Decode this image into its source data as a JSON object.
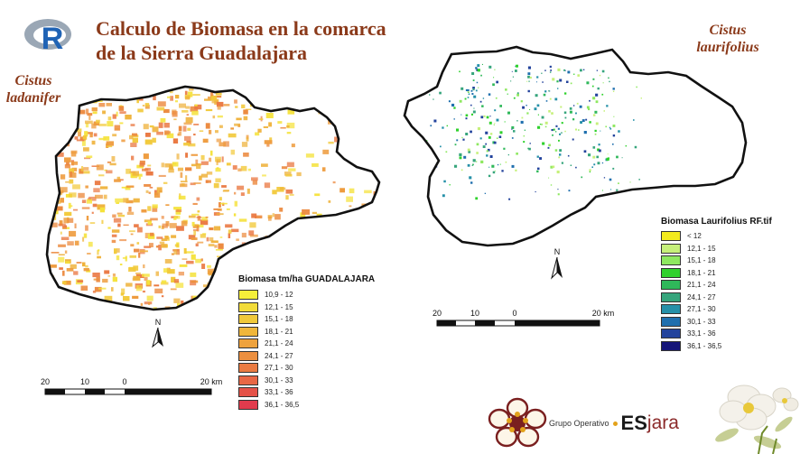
{
  "title": {
    "line1": "Calculo de Biomasa en la comarca",
    "line2": "de la Sierra Guadalajara"
  },
  "r_logo": {
    "letter": "R",
    "icon": "r-logo-icon",
    "ring_color": "#8a9aab",
    "letter_color": "#1f63b5"
  },
  "left_map": {
    "species_line1": "Cistus",
    "species_line2": "ladanifer",
    "legend_title": "Biomasa tm/ha GUADALAJARA",
    "legend": [
      {
        "label": "10,9 - 12",
        "color": "#f5ef3a"
      },
      {
        "label": "12,1 - 15",
        "color": "#f2dc3a"
      },
      {
        "label": "15,1 - 18",
        "color": "#f0c93a"
      },
      {
        "label": "18,1 - 21",
        "color": "#efb63b"
      },
      {
        "label": "21,1 - 24",
        "color": "#eea23d"
      },
      {
        "label": "24,1 - 27",
        "color": "#ec8f3f"
      },
      {
        "label": "27,1 - 30",
        "color": "#ea7b42"
      },
      {
        "label": "30,1 - 33",
        "color": "#e86745"
      },
      {
        "label": "33,1 - 36",
        "color": "#e55248"
      },
      {
        "label": "36,1 - 36,5",
        "color": "#e13b4d"
      }
    ],
    "north_label": "N",
    "scale_labels": [
      "20",
      "10",
      "0",
      "20 km"
    ]
  },
  "right_map": {
    "species_line1": "Cistus",
    "species_line2": "laurifolius",
    "legend_title": "Biomasa Laurifolius RF.tif",
    "legend": [
      {
        "label": "< 12",
        "color": "#f2ea1e"
      },
      {
        "label": "12,1 - 15",
        "color": "#c6f07a"
      },
      {
        "label": "15,1 - 18",
        "color": "#8ee860"
      },
      {
        "label": "18,1 - 21",
        "color": "#2fd12c"
      },
      {
        "label": "21,1 - 24",
        "color": "#2fb85a"
      },
      {
        "label": "24,1 - 27",
        "color": "#36a57c"
      },
      {
        "label": "27,1 - 30",
        "color": "#2590a8"
      },
      {
        "label": "30,1 - 33",
        "color": "#1f6fae"
      },
      {
        "label": "33,1 - 36",
        "color": "#23439c"
      },
      {
        "label": "36,1 - 36,5",
        "color": "#151579"
      }
    ],
    "north_label": "N",
    "scale_labels": [
      "20",
      "10",
      "0",
      "20 km"
    ]
  },
  "footer": {
    "group_label": "Grupo Operativo",
    "brand_es": "ES",
    "brand_jara": "jara",
    "flower_logo_icon": "flower-logo-icon",
    "flower_photo_icon": "white-flower-photo-icon",
    "brand_es_color": "#1a1a1a",
    "brand_jara_color": "#8b2a2a",
    "dot_color": "#e3a21a"
  }
}
